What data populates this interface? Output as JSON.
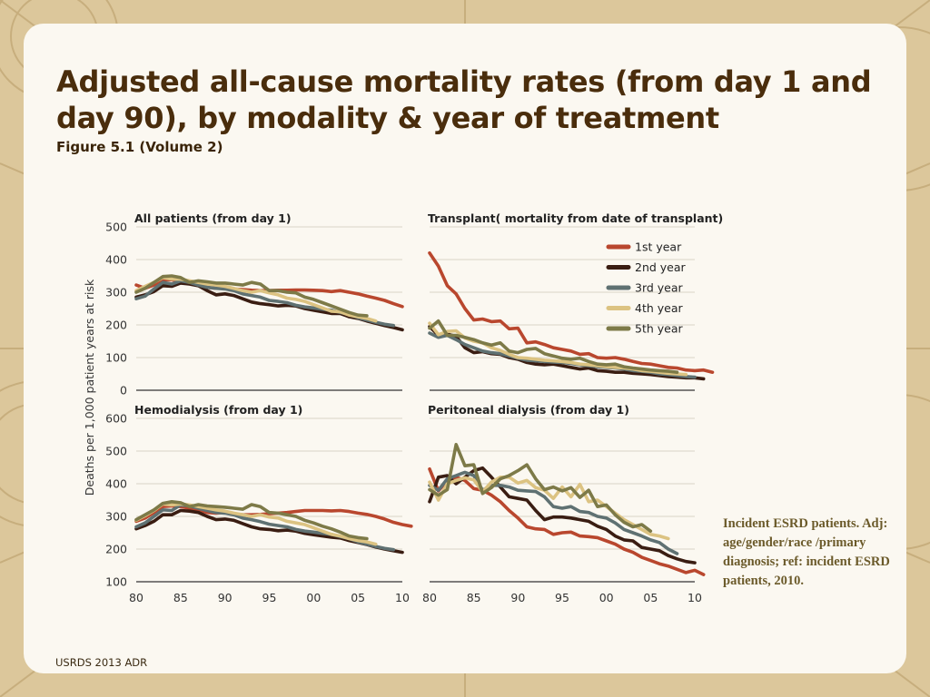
{
  "slide": {
    "title": "Adjusted all-cause mortality rates (from day 1 and day 90), by modality & year of treatment",
    "subtitle": "Figure 5.1 (Volume 2)",
    "note": "Incident ESRD patients. Adj: age/gender/race /primary diagnosis; ref: incident ESRD patients, 2010.",
    "source": "USRDS 2013 ADR",
    "colors": {
      "background": "#d9c59a",
      "card": "#fbf8f1",
      "title": "#4a2d0c",
      "note": "#6b5a2a"
    }
  },
  "chart_data": {
    "type": "line",
    "ylabel": "Deaths per 1,000 patient years at risk",
    "xlabel": "",
    "x_ticks": [
      80,
      85,
      90,
      95,
      "00",
      "05",
      10
    ],
    "legend": {
      "placement": "top-right of Transplant panel",
      "series": [
        {
          "name": "1st year",
          "color": "#b9472e"
        },
        {
          "name": "2nd year",
          "color": "#3a1d12"
        },
        {
          "name": "3rd year",
          "color": "#5f7172"
        },
        {
          "name": "4th year",
          "color": "#dcc382"
        },
        {
          "name": "5th year",
          "color": "#7d7a48"
        }
      ]
    },
    "panels": [
      {
        "title": "All patients (from day 1)",
        "ylim": [
          0,
          500
        ],
        "yticks": [
          0,
          100,
          200,
          300,
          400,
          500
        ],
        "series": [
          {
            "name": "1st year",
            "start": 1980,
            "values": [
              322,
              312,
              322,
              338,
              338,
              335,
              328,
              322,
              315,
              312,
              312,
              310,
              308,
              306,
              305,
              305,
              306,
              306,
              307,
              307,
              306,
              305,
              302,
              305,
              300,
              295,
              288,
              282,
              275,
              265,
              256
            ]
          },
          {
            "name": "2nd year",
            "start": 1980,
            "values": [
              285,
              292,
              302,
              320,
              318,
              328,
              325,
              320,
              305,
              292,
              295,
              290,
              280,
              270,
              265,
              262,
              258,
              260,
              258,
              250,
              245,
              240,
              235,
              235,
              225,
              220,
              212,
              205,
              198,
              192,
              185
            ]
          },
          {
            "name": "3rd year",
            "start": 1980,
            "values": [
              280,
              288,
              310,
              330,
              325,
              335,
              330,
              322,
              315,
              312,
              310,
              305,
              295,
              290,
              285,
              275,
              272,
              268,
              260,
              255,
              252,
              248,
              245,
              238,
              232,
              222,
              215,
              208,
              202,
              198
            ]
          },
          {
            "name": "4th year",
            "start": 1980,
            "values": [
              305,
              318,
              330,
              345,
              340,
              340,
              335,
              330,
              325,
              322,
              318,
              312,
              305,
              300,
              305,
              298,
              292,
              282,
              278,
              272,
              262,
              252,
              242,
              240,
              230,
              225,
              220,
              212
            ]
          },
          {
            "name": "5th year",
            "start": 1980,
            "values": [
              300,
              312,
              330,
              348,
              350,
              345,
              330,
              335,
              332,
              328,
              328,
              325,
              322,
              330,
              325,
              305,
              305,
              300,
              298,
              285,
              278,
              268,
              258,
              248,
              238,
              230,
              228
            ]
          }
        ]
      },
      {
        "title": "Transplant( mortality from date of transplant)",
        "ylim": [
          0,
          500
        ],
        "yticks": [
          0,
          100,
          200,
          300,
          400,
          500
        ],
        "series": [
          {
            "name": "1st year",
            "start": 1980,
            "values": [
              420,
              380,
              320,
              295,
              250,
              215,
              218,
              210,
              212,
              188,
              190,
              145,
              148,
              140,
              130,
              125,
              120,
              110,
              112,
              100,
              98,
              100,
              95,
              88,
              82,
              80,
              75,
              70,
              68,
              62,
              60,
              62,
              55
            ]
          },
          {
            "name": "2nd year",
            "start": 1980,
            "values": [
              195,
              168,
              172,
              165,
              130,
              115,
              118,
              112,
              110,
              100,
              95,
              85,
              80,
              78,
              80,
              75,
              70,
              65,
              68,
              60,
              58,
              55,
              55,
              52,
              50,
              48,
              45,
              42,
              40,
              38,
              38,
              35
            ]
          },
          {
            "name": "3rd year",
            "start": 1980,
            "values": [
              175,
              162,
              168,
              155,
              140,
              130,
              120,
              115,
              112,
              105,
              98,
              92,
              90,
              88,
              86,
              85,
              82,
              78,
              75,
              72,
              70,
              68,
              65,
              60,
              58,
              55,
              50,
              48,
              45,
              42,
              40
            ]
          },
          {
            "name": "4th year",
            "start": 1980,
            "values": [
              205,
              170,
              180,
              182,
              160,
              150,
              145,
              130,
              122,
              110,
              100,
              98,
              95,
              92,
              90,
              88,
              85,
              80,
              78,
              75,
              72,
              70,
              68,
              65,
              60,
              58,
              55,
              52,
              50,
              48
            ]
          },
          {
            "name": "5th year",
            "start": 1980,
            "values": [
              190,
              212,
              168,
              168,
              162,
              155,
              145,
              138,
              145,
              120,
              115,
              125,
              128,
              112,
              105,
              98,
              95,
              98,
              88,
              80,
              78,
              80,
              72,
              68,
              65,
              62,
              60,
              58,
              55
            ]
          }
        ]
      },
      {
        "title": "Hemodialysis (from day 1)",
        "ylim": [
          100,
          600
        ],
        "yticks": [
          100,
          200,
          300,
          400,
          500,
          600
        ],
        "series": [
          {
            "name": "1st year",
            "start": 1980,
            "values": [
              285,
              295,
              312,
              330,
              332,
              330,
              325,
              320,
              312,
              310,
              312,
              308,
              305,
              305,
              306,
              308,
              310,
              312,
              315,
              318,
              318,
              318,
              317,
              318,
              315,
              310,
              306,
              300,
              292,
              282,
              275,
              270
            ]
          },
          {
            "name": "2nd year",
            "start": 1980,
            "values": [
              262,
              272,
              285,
              305,
              305,
              318,
              316,
              312,
              300,
              290,
              292,
              288,
              278,
              268,
              262,
              260,
              256,
              258,
              255,
              248,
              244,
              240,
              236,
              234,
              226,
              220,
              214,
              206,
              200,
              195,
              190
            ]
          },
          {
            "name": "3rd year",
            "start": 1980,
            "values": [
              268,
              280,
              300,
              320,
              318,
              335,
              332,
              325,
              318,
              312,
              310,
              305,
              295,
              290,
              284,
              276,
              272,
              268,
              260,
              255,
              252,
              248,
              245,
              238,
              232,
              222,
              215,
              208,
              202,
              198
            ]
          },
          {
            "name": "4th year",
            "start": 1980,
            "values": [
              288,
              302,
              318,
              338,
              335,
              338,
              335,
              330,
              325,
              320,
              316,
              310,
              305,
              300,
              305,
              298,
              295,
              285,
              280,
              275,
              265,
              255,
              245,
              240,
              232,
              226,
              222,
              215
            ]
          },
          {
            "name": "5th year",
            "start": 1980,
            "values": [
              290,
              305,
              320,
              340,
              345,
              342,
              330,
              336,
              332,
              330,
              328,
              325,
              322,
              336,
              330,
              312,
              310,
              305,
              300,
              288,
              280,
              270,
              262,
              252,
              240,
              235,
              232
            ]
          }
        ]
      },
      {
        "title": "Peritoneal dialysis (from day 1)",
        "ylim": [
          100,
          600
        ],
        "yticks": [
          100,
          200,
          300,
          400,
          500,
          600
        ],
        "series": [
          {
            "name": "1st year",
            "start": 1980,
            "values": [
              445,
              378,
              410,
              420,
              410,
              385,
              380,
              365,
              345,
              318,
              295,
              268,
              262,
              260,
              245,
              250,
              252,
              240,
              238,
              235,
              225,
              215,
              200,
              190,
              175,
              165,
              155,
              148,
              138,
              128,
              135,
              122
            ]
          },
          {
            "name": "2nd year",
            "start": 1980,
            "values": [
              345,
              420,
              425,
              400,
              420,
              440,
              448,
              420,
              390,
              360,
              355,
              350,
              318,
              290,
              298,
              298,
              295,
              290,
              285,
              270,
              260,
              240,
              228,
              225,
              205,
              200,
              195,
              180,
              170,
              162,
              158
            ]
          },
          {
            "name": "3rd year",
            "start": 1980,
            "values": [
              395,
              380,
              415,
              425,
              435,
              425,
              380,
              395,
              395,
              390,
              380,
              378,
              376,
              360,
              330,
              325,
              330,
              315,
              312,
              300,
              295,
              280,
              260,
              250,
              240,
              228,
              220,
              200,
              186
            ]
          },
          {
            "name": "4th year",
            "start": 1980,
            "values": [
              405,
              350,
              400,
              410,
              418,
              412,
              375,
              405,
              420,
              420,
              402,
              410,
              388,
              380,
              355,
              390,
              360,
              398,
              345,
              350,
              330,
              310,
              290,
              275,
              260,
              245,
              240,
              232
            ]
          },
          {
            "name": "5th year",
            "start": 1980,
            "values": [
              382,
              365,
              382,
              520,
              455,
              458,
              370,
              388,
              415,
              425,
              440,
              458,
              415,
              382,
              390,
              378,
              388,
              358,
              380,
              330,
              335,
              305,
              282,
              268,
              275,
              255
            ]
          }
        ]
      }
    ]
  }
}
